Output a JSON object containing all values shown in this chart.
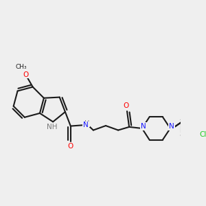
{
  "bg_color": "#efefef",
  "bond_color": "#1a1a1a",
  "N_color": "#1414ff",
  "O_color": "#ff0000",
  "Cl_color": "#1fcc1f",
  "H_color": "#7a7a7a",
  "lw": 1.5,
  "fontsize": 7.5,
  "xlim": [
    0,
    10.0
  ],
  "ylim": [
    0,
    7.5
  ]
}
